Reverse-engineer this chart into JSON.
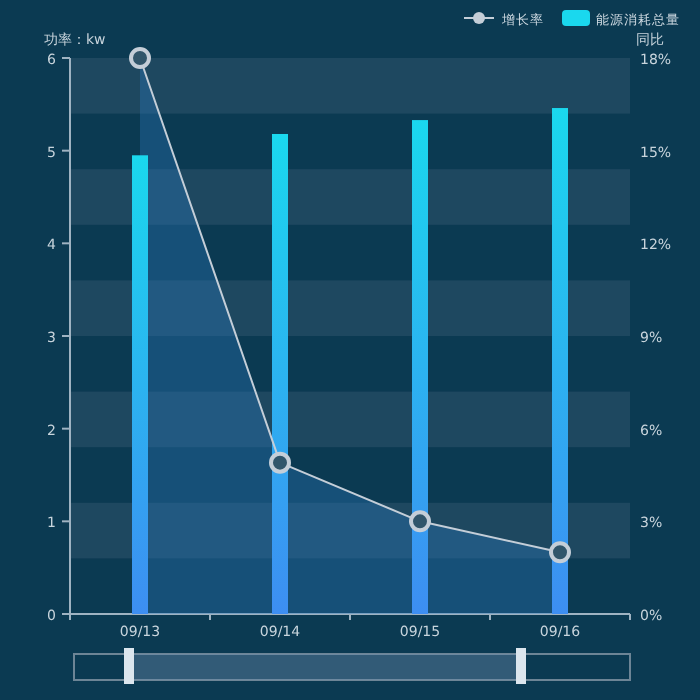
{
  "chart_data": {
    "type": "bar",
    "categories": [
      "09/13",
      "09/14",
      "09/15",
      "09/16"
    ],
    "ylabel": "功率：kw",
    "y2label": "同比",
    "ylim": [
      0,
      6
    ],
    "yticks": [
      0,
      1,
      2,
      3,
      4,
      5,
      6
    ],
    "y2lim": [
      0,
      18
    ],
    "y2ticks": [
      {
        "value": 0,
        "label": "0%"
      },
      {
        "value": 3,
        "label": "3%"
      },
      {
        "value": 6,
        "label": "6%"
      },
      {
        "value": 9,
        "label": "9%"
      },
      {
        "value": 12,
        "label": "12%"
      },
      {
        "value": 15,
        "label": "15%"
      },
      {
        "value": 18,
        "label": "18%"
      }
    ],
    "legend": "top right",
    "marker": "circle",
    "bands": [
      {
        "axis": "y",
        "from": 5.4,
        "to": 6,
        "color": "#1e4860"
      },
      {
        "axis": "y",
        "from": 4.2,
        "to": 4.8,
        "color": "#1e4860"
      },
      {
        "axis": "y",
        "from": 3,
        "to": 3.6,
        "color": "#1e4860"
      },
      {
        "axis": "y",
        "from": 1.8,
        "to": 2.4,
        "color": "#1e4860"
      },
      {
        "axis": "y",
        "from": 0.6,
        "to": 1.2,
        "color": "#1e4860"
      }
    ],
    "series": [
      {
        "name": "增长率",
        "type": "area",
        "axis": "y2",
        "color": "#c4ced8",
        "values": [
          18,
          4.9,
          3.0,
          2.0
        ]
      },
      {
        "name": "能源消耗总量",
        "color": "#1ad8ee",
        "values": [
          4.95,
          5.18,
          5.33,
          5.46
        ]
      }
    ]
  }
}
